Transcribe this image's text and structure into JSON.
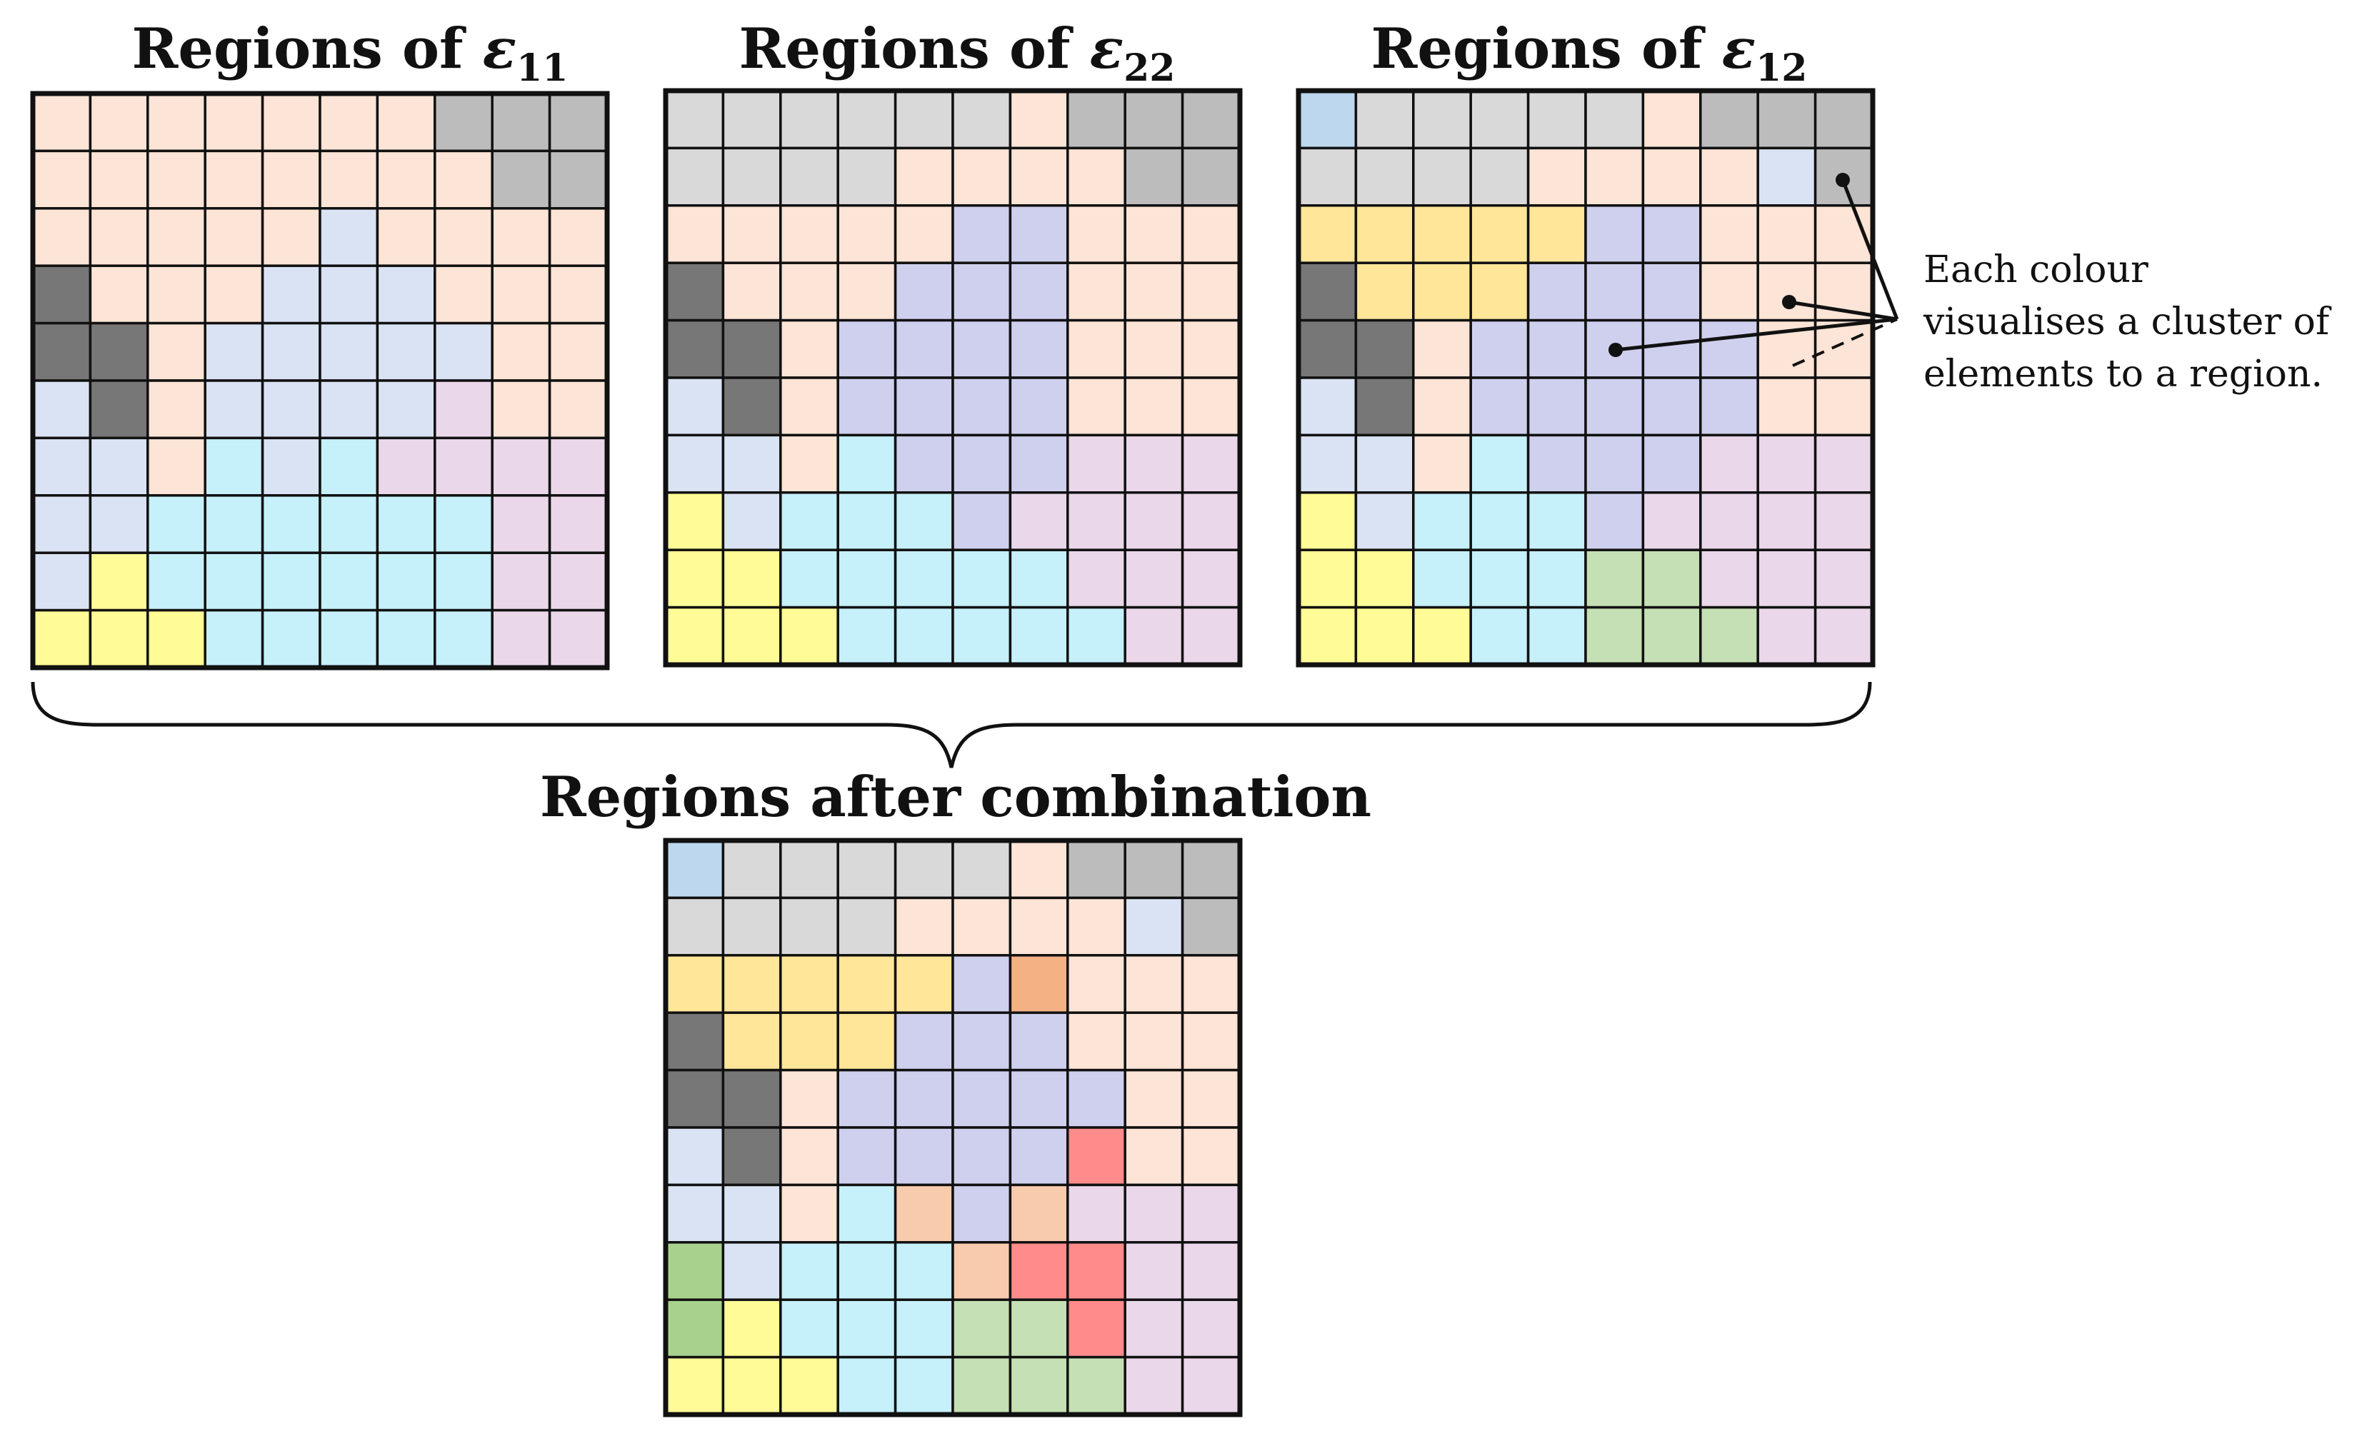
{
  "palette": {
    "P": "#fce4d6",
    "p": "#fddcc8",
    "G": "#d9d9d9",
    "g": "#bcbcbc",
    "D": "#777777",
    "L": "#dae3f3",
    "B": "#bdd7ee",
    "V": "#cfcfee",
    "C": "#c6f0fa",
    "M": "#ead8ea",
    "Y": "#fffb96",
    "O": "#ffe699",
    "E": "#c5e0b4",
    "e": "#a9d18e",
    "S": "#f8cbad",
    "A": "#f4b183",
    "R": "#ff8b8b"
  },
  "panels": [
    {
      "id": "eps11",
      "title_main": "Regions of ",
      "title_symbol": "ε",
      "title_sub": "11",
      "rows": [
        "PPPPPPPggg",
        "PPPPPPPPgg",
        "PPPPPLPPPP",
        "DPPPLLLPPP",
        "DDPLLLLLPP",
        "LDPLLLLMPP",
        "LLPCLCMMMM",
        "LLCCCCCCMM",
        "LYCCCCCCMM",
        "YYYCCCCCMM"
      ]
    },
    {
      "id": "eps22",
      "title_main": "Regions of ",
      "title_symbol": "ε",
      "title_sub": "22",
      "rows": [
        "GGGGGGPggg",
        "GGGGPPPPgg",
        "PPPPPVVPPP",
        "DPPPVVVPPP",
        "DDPVVVVPPP",
        "LDPVVVVPPP",
        "LLPCVVVMMM",
        "YLCCCVMMMM",
        "YYCCCCCMMM",
        "YYYCCCCCMM"
      ]
    },
    {
      "id": "eps12",
      "title_main": "Regions of ",
      "title_symbol": "ε",
      "title_sub": "12",
      "rows": [
        "BGGGGGPggg",
        "GGGGPPPPLg",
        "OOOOOVVPPP",
        "DOOOVVVPPP",
        "DDPVVVVVPP",
        "LDPVVVVVPP",
        "LLPCVVVMMM",
        "YLCCCVMMMM",
        "YYCCCEEMMM",
        "YYYCCEEEMM"
      ]
    },
    {
      "id": "combined",
      "title_main": "Regions after combination",
      "title_symbol": "",
      "title_sub": "",
      "rows": [
        "BGGGGGPggg",
        "GGGGPPPPLg",
        "OOOOOVAPPP",
        "DOOOVVVPPP",
        "DDPVVVVVPP",
        "LDPVVVVRPP",
        "LLPCSVSMMM",
        "eLCCCSRRMM",
        "eYCCCEERMM",
        "YYYCCEEEMM"
      ]
    }
  ],
  "annotation": {
    "lines": [
      "Each colour",
      "visualises a cluster of",
      "elements to a region."
    ]
  }
}
